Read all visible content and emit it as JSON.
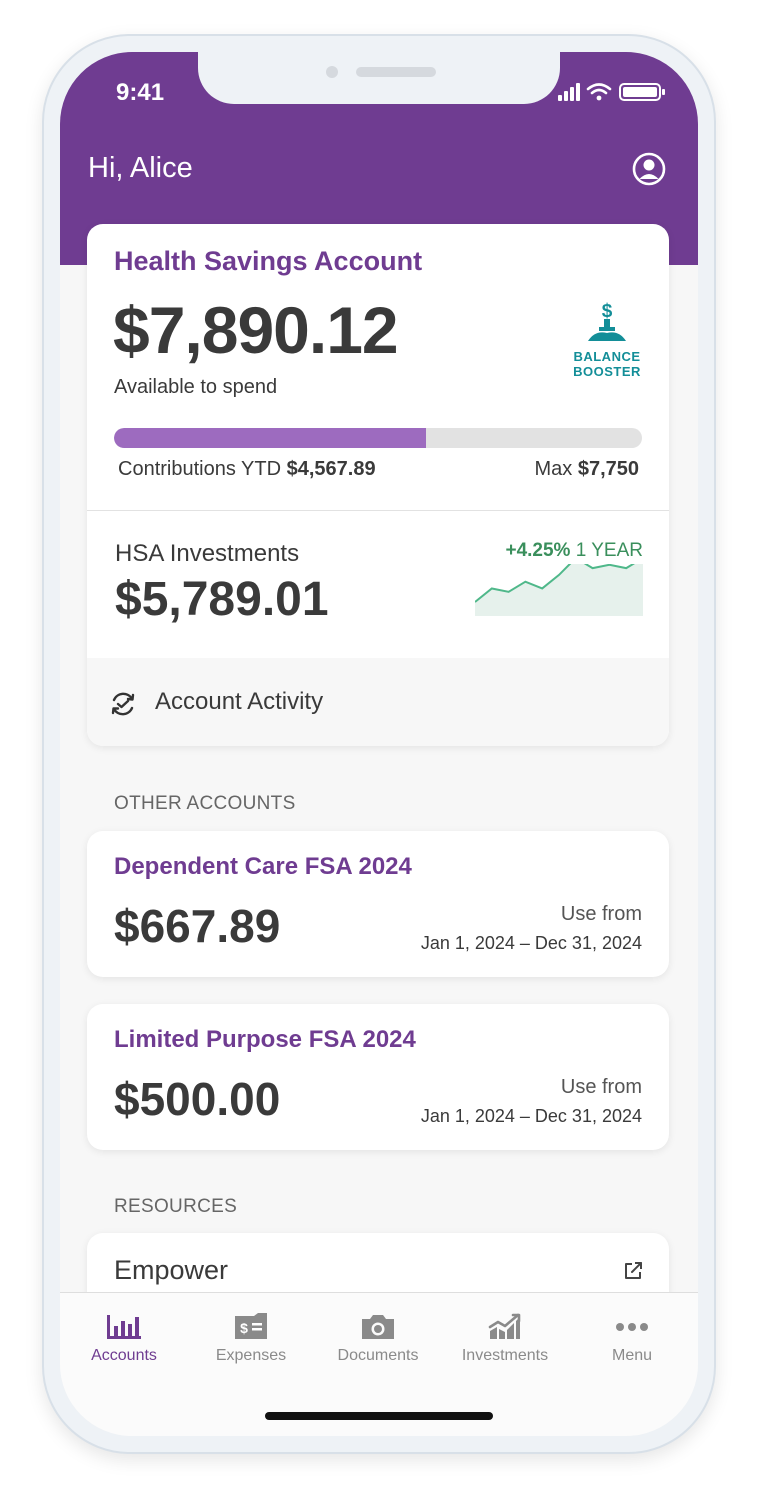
{
  "status_bar": {
    "time": "9:41"
  },
  "header": {
    "greeting": "Hi, Alice"
  },
  "hsa": {
    "title": "Health Savings Account",
    "balance": "$7,890.12",
    "balance_label": "Available to spend",
    "booster_line1": "BALANCE",
    "booster_line2": "BOOSTER",
    "contributions_label": "Contributions YTD",
    "contributions_value": "$4,567.89",
    "max_label": "Max",
    "max_value": "$7,750",
    "progress_percent": 59,
    "investments_label": "HSA Investments",
    "investments_balance": "$5,789.01",
    "investments_change": "+4.25%",
    "investments_period": "1 YEAR",
    "sparkline": [
      2,
      6,
      5,
      8,
      6,
      10,
      15,
      12,
      13,
      12,
      15
    ],
    "activity_label": "Account Activity"
  },
  "other_accounts": {
    "section_label": "OTHER ACCOUNTS",
    "accounts": [
      {
        "title": "Dependent Care FSA 2024",
        "balance": "$667.89",
        "use_label": "Use from",
        "dates": "Jan 1, 2024 – Dec 31, 2024"
      },
      {
        "title": "Limited Purpose FSA 2024",
        "balance": "$500.00",
        "use_label": "Use from",
        "dates": "Jan 1, 2024 – Dec 31, 2024"
      }
    ]
  },
  "resources": {
    "section_label": "RESOURCES",
    "items": [
      {
        "label": "Empower"
      }
    ]
  },
  "tabs": [
    {
      "label": "Accounts",
      "icon": "bar-chart-icon",
      "active": true
    },
    {
      "label": "Expenses",
      "icon": "bill-icon",
      "active": false
    },
    {
      "label": "Documents",
      "icon": "camera-icon",
      "active": false
    },
    {
      "label": "Investments",
      "icon": "trend-icon",
      "active": false
    },
    {
      "label": "Menu",
      "icon": "more-dots-icon",
      "active": false
    }
  ],
  "colors": {
    "brand_purple": "#6f3c91",
    "progress_fill": "#9d6bbf",
    "booster_teal": "#138e98",
    "gain_green": "#3a8f5c"
  }
}
